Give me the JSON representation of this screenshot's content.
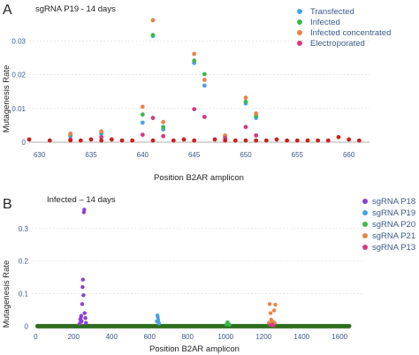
{
  "chart_data": [
    {
      "type": "scatter",
      "panel_label": "A",
      "title": "sgRNA P19 -  14 days",
      "xlabel": "Position B2AR amplicon",
      "ylabel": "Mutagenesis Rate",
      "xlim": [
        629,
        662
      ],
      "ylim": [
        0,
        0.038
      ],
      "xticks": [
        630,
        635,
        640,
        645,
        650,
        655,
        660
      ],
      "yticks": [
        0,
        0.01,
        0.02,
        0.03
      ],
      "ytick_labels": [
        "0",
        "0.01",
        "0.02",
        "0.03"
      ],
      "grid": "horizontal",
      "legend_position": "top-right",
      "series": [
        {
          "name": "Transfected",
          "color": "#4aa3e0",
          "points": [
            [
              633,
              0.0018
            ],
            [
              636,
              0.0025
            ],
            [
              640,
              0.0058
            ],
            [
              641,
              0.0315
            ],
            [
              642,
              0.0038
            ],
            [
              645,
              0.0235
            ],
            [
              646,
              0.0168
            ],
            [
              648,
              0.0014
            ],
            [
              650,
              0.0115
            ],
            [
              651,
              0.0072
            ]
          ]
        },
        {
          "name": "Infected",
          "color": "#3cb84a",
          "points": [
            [
              633,
              0.0022
            ],
            [
              636,
              0.003
            ],
            [
              640,
              0.0082
            ],
            [
              641,
              0.0318
            ],
            [
              642,
              0.0045
            ],
            [
              645,
              0.0242
            ],
            [
              646,
              0.0202
            ],
            [
              648,
              0.0018
            ],
            [
              650,
              0.012
            ],
            [
              651,
              0.0078
            ]
          ]
        },
        {
          "name": "Infected concentrated",
          "color": "#e8834a",
          "points": [
            [
              633,
              0.0025
            ],
            [
              636,
              0.0032
            ],
            [
              640,
              0.0105
            ],
            [
              641,
              0.0362
            ],
            [
              642,
              0.006
            ],
            [
              645,
              0.0262
            ],
            [
              646,
              0.0185
            ],
            [
              648,
              0.002
            ],
            [
              650,
              0.0132
            ],
            [
              651,
              0.0085
            ]
          ]
        },
        {
          "name": "Electroporated",
          "color": "#d63a7e",
          "points": [
            [
              633,
              0.0008
            ],
            [
              636,
              0.0015
            ],
            [
              640,
              0.0022
            ],
            [
              641,
              0.0072
            ],
            [
              642,
              0.0018
            ],
            [
              645,
              0.0098
            ],
            [
              646,
              0.0075
            ],
            [
              648,
              0.0012
            ],
            [
              650,
              0.0045
            ],
            [
              651,
              0.002
            ]
          ]
        },
        {
          "name": "",
          "color": "#cc1f1f",
          "points": [
            [
              629,
              0.0008
            ],
            [
              631,
              0.0005
            ],
            [
              633,
              0.0005
            ],
            [
              634,
              0.0005
            ],
            [
              635,
              0.0008
            ],
            [
              636,
              0.0005
            ],
            [
              637,
              0.0008
            ],
            [
              638,
              0.0005
            ],
            [
              639,
              0.0005
            ],
            [
              641,
              0.0005
            ],
            [
              643,
              0.0005
            ],
            [
              644,
              0.0008
            ],
            [
              645,
              0.0005
            ],
            [
              647,
              0.0008
            ],
            [
              648,
              0.0005
            ],
            [
              649,
              0.0005
            ],
            [
              650,
              0.0005
            ],
            [
              651,
              0.0005
            ],
            [
              652,
              0.0005
            ],
            [
              653,
              0.0008
            ],
            [
              654,
              0.0005
            ],
            [
              655,
              0.0005
            ],
            [
              656,
              0.0005
            ],
            [
              657,
              0.0005
            ],
            [
              658,
              0.0005
            ],
            [
              659,
              0.0015
            ],
            [
              660,
              0.0008
            ],
            [
              661,
              0.0005
            ]
          ]
        }
      ]
    },
    {
      "type": "scatter",
      "panel_label": "B",
      "title": "Infected – 14 days",
      "xlabel": "Position B2AR amplicon",
      "ylabel": "Mutagenesis Rate",
      "xlim": [
        -20,
        1720
      ],
      "ylim": [
        -0.01,
        0.37
      ],
      "xticks": [
        0,
        200,
        400,
        600,
        800,
        1000,
        1200,
        1400,
        1600
      ],
      "yticks": [
        0,
        0.1,
        0.2,
        0.3
      ],
      "ytick_labels": [
        "0",
        "0.1",
        "0.2",
        "0.3"
      ],
      "grid": "horizontal",
      "legend_position": "top-right",
      "baseline_range": [
        10,
        1650
      ],
      "baseline_color": "#2e6e1e",
      "series": [
        {
          "name": "sgRNA P18",
          "color": "#8b3fd6",
          "points": [
            [
              232,
              0.008
            ],
            [
              235,
              0.02
            ],
            [
              238,
              0.025
            ],
            [
              240,
              0.032
            ],
            [
              242,
              0.015
            ],
            [
              245,
              0.068
            ],
            [
              247,
              0.12
            ],
            [
              249,
              0.143
            ],
            [
              252,
              0.095
            ],
            [
              254,
              0.35
            ],
            [
              256,
              0.358
            ],
            [
              258,
              0.04
            ],
            [
              262,
              0.025
            ],
            [
              265,
              0.01
            ]
          ]
        },
        {
          "name": "sgRNA P19",
          "color": "#4aa3e0",
          "points": [
            [
              638,
              0.015
            ],
            [
              641,
              0.033
            ],
            [
              643,
              0.028
            ],
            [
              645,
              0.02
            ],
            [
              647,
              0.012
            ],
            [
              650,
              0.008
            ]
          ]
        },
        {
          "name": "sgRNA P20",
          "color": "#3cb84a",
          "points": [
            [
              1005,
              0.005
            ],
            [
              1010,
              0.012
            ],
            [
              1015,
              0.008
            ],
            [
              1020,
              0.004
            ]
          ]
        },
        {
          "name": "sgRNA P21",
          "color": "#e8834a",
          "points": [
            [
              1228,
              0.01
            ],
            [
              1232,
              0.068
            ],
            [
              1236,
              0.04
            ],
            [
              1240,
              0.02
            ],
            [
              1245,
              0.015
            ],
            [
              1250,
              0.012
            ],
            [
              1255,
              0.048
            ],
            [
              1258,
              0.01
            ],
            [
              1262,
              0.066
            ]
          ]
        },
        {
          "name": "sgRNA P13",
          "color": "#d63a7e",
          "points": [
            [
              1237,
              0.003
            ],
            [
              1246,
              0.004
            ],
            [
              1252,
              0.002
            ]
          ]
        }
      ]
    }
  ]
}
